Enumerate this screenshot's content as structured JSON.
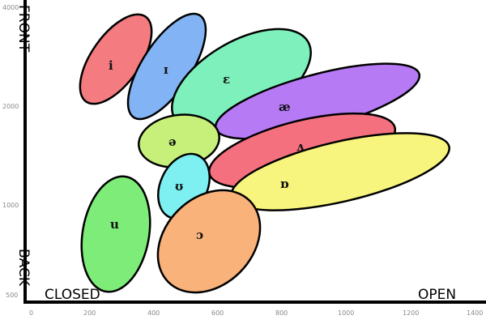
{
  "axes": {
    "y_top_label": "FRONT",
    "y_bottom_label": "BACK",
    "x_left_label": "CLOSED",
    "x_right_label": "OPEN",
    "y_ticks": [
      "4000",
      "2000",
      "1000",
      "500"
    ],
    "x_ticks": [
      "0",
      "200",
      "400",
      "600",
      "800",
      "1000",
      "1200",
      "1400"
    ]
  },
  "vowels": [
    {
      "id": "i",
      "symbol": "i",
      "color": "#f47c80"
    },
    {
      "id": "ɪ",
      "symbol": "ɪ",
      "color": "#82b4f5"
    },
    {
      "id": "ɛ",
      "symbol": "ɛ",
      "color": "#7ef0bc"
    },
    {
      "id": "æ",
      "symbol": "æ",
      "color": "#b67af5"
    },
    {
      "id": "ʌ",
      "symbol": "ʌ",
      "color": "#f4707e"
    },
    {
      "id": "ɒ",
      "symbol": "ɒ",
      "color": "#f7f57e"
    },
    {
      "id": "ə",
      "symbol": "ə",
      "color": "#c6f07a"
    },
    {
      "id": "ʊ",
      "symbol": "ʊ",
      "color": "#7ef0f2"
    },
    {
      "id": "u",
      "symbol": "u",
      "color": "#7eec78"
    },
    {
      "id": "ɔ",
      "symbol": "ɔ",
      "color": "#f8b27a"
    }
  ]
}
